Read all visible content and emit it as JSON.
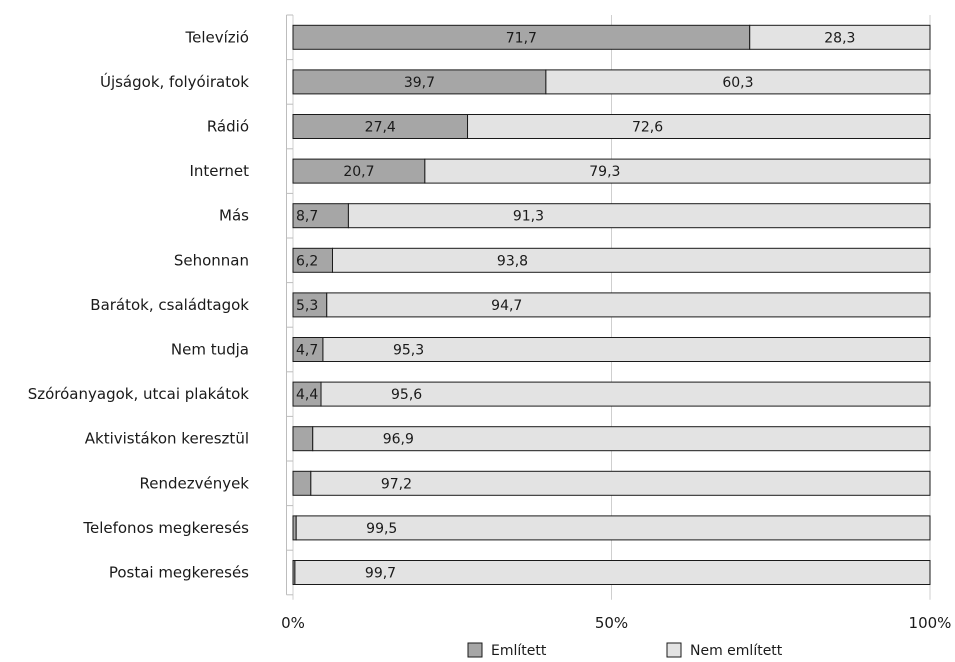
{
  "chart_data": {
    "type": "bar",
    "orientation": "horizontal",
    "stacked": true,
    "categories": [
      "Televízió",
      "Újságok, folyóiratok",
      "Rádió",
      "Internet",
      "Más",
      "Sehonnan",
      "Barátok, családtagok",
      "Nem tudja",
      "Szóróanyagok, utcai plakátok",
      "Aktivistákon keresztül",
      "Rendezvények",
      "Telefonos megkeresés",
      "Postai megkeresés"
    ],
    "series": [
      {
        "name": "Említett",
        "color": "#a6a6a6",
        "values": [
          71.7,
          39.7,
          27.4,
          20.7,
          8.7,
          6.2,
          5.3,
          4.7,
          4.4,
          3.1,
          2.8,
          0.5,
          0.3
        ],
        "labels": [
          "71,7",
          "39,7",
          "27,4",
          "20,7",
          "8,7",
          "6,2",
          "5,3",
          "4,7",
          "4,4",
          "",
          "",
          "",
          ""
        ]
      },
      {
        "name": "Nem említett",
        "color": "#e3e3e3",
        "values": [
          28.3,
          60.3,
          72.6,
          79.3,
          91.3,
          93.8,
          94.7,
          95.3,
          95.6,
          96.9,
          97.2,
          99.5,
          99.7
        ],
        "labels": [
          "28,3",
          "60,3",
          "72,6",
          "79,3",
          "91,3",
          "93,8",
          "94,7",
          "95,3",
          "95,6",
          "96,9",
          "97,2",
          "99,5",
          "99,7"
        ]
      }
    ],
    "x_ticks": [
      "0%",
      "50%",
      "100%"
    ],
    "xlim": [
      0,
      100
    ],
    "grid": true,
    "legend_position": "bottom"
  }
}
